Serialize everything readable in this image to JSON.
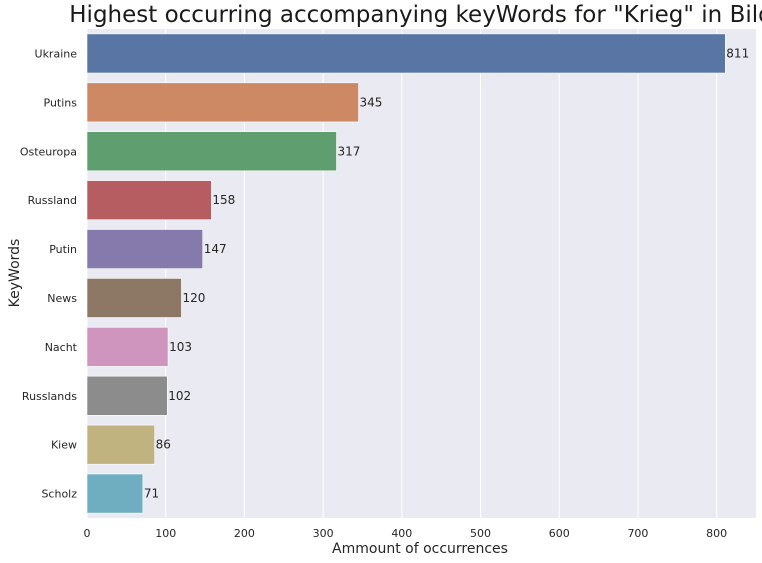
{
  "chart_data": {
    "type": "bar",
    "orientation": "horizontal",
    "title": "Highest occurring accompanying keyWords for \"Krieg\" in Bild",
    "xlabel": "Ammount of occurrences",
    "ylabel": "KeyWords",
    "categories": [
      "Ukraine",
      "Putins",
      "Osteuropa",
      "Russland",
      "Putin",
      "News",
      "Nacht",
      "Russlands",
      "Kiew",
      "Scholz"
    ],
    "values": [
      811,
      345,
      317,
      158,
      147,
      120,
      103,
      102,
      86,
      71
    ],
    "colors": [
      "#5875a4",
      "#cc8963",
      "#5f9e6e",
      "#b55d60",
      "#857aab",
      "#8d7866",
      "#d095bf",
      "#8c8c8c",
      "#c1b37f",
      "#6fadc1"
    ],
    "xlim": [
      0,
      850
    ],
    "xticks": [
      0,
      100,
      200,
      300,
      400,
      500,
      600,
      700,
      800
    ],
    "grid": true,
    "background": "#eaeaf2"
  }
}
